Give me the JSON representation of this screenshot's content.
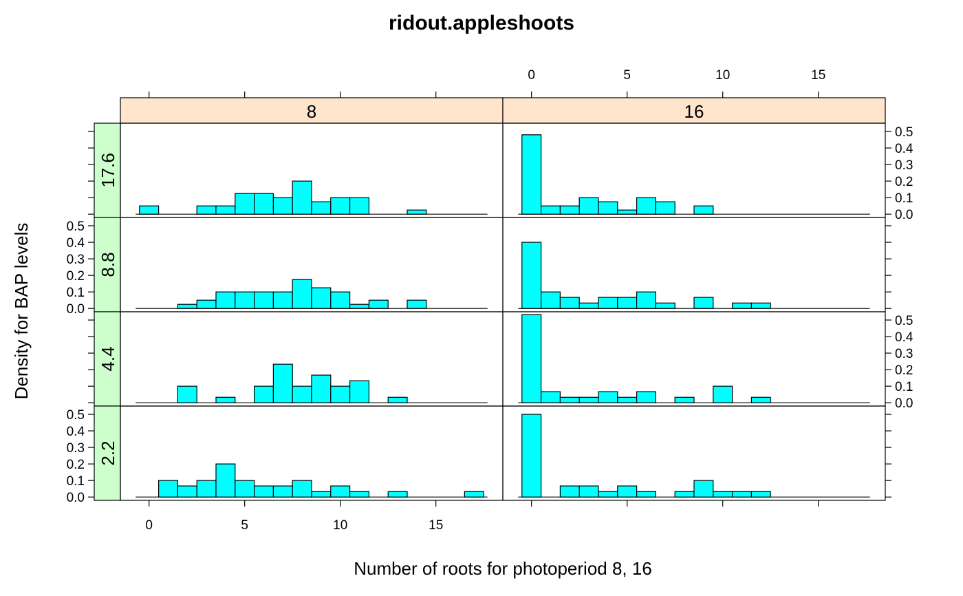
{
  "chart_data": {
    "type": "bar",
    "title": "ridout.appleshoots",
    "xlabel": "Number of roots for photoperiod 8, 16",
    "ylabel": "Density for BAP levels",
    "xlim": [
      -1.5,
      18.5
    ],
    "ylim": [
      -0.02,
      0.55
    ],
    "xticks": [
      0,
      5,
      10,
      15
    ],
    "yticks": [
      0.0,
      0.1,
      0.2,
      0.3,
      0.4,
      0.5
    ],
    "ytick_labels": [
      "0.0",
      "0.1",
      "0.2",
      "0.3",
      "0.4",
      "0.5"
    ],
    "bin_start": -0.5,
    "bin_width": 1,
    "columns": [
      "8",
      "16"
    ],
    "rows": [
      "17.6",
      "8.8",
      "4.4",
      "2.2"
    ],
    "colors": {
      "bar_fill": "#00FFFF",
      "bar_stroke": "#000000",
      "column_strip": "#FFE5CC",
      "row_strip": "#CCFFCC"
    },
    "panels": [
      {
        "photoperiod": "8",
        "bap": "17.6",
        "density": [
          0.05,
          0,
          0,
          0.05,
          0.05,
          0.125,
          0.125,
          0.1,
          0.2,
          0.075,
          0.1,
          0.1,
          0,
          0,
          0.025,
          0,
          0,
          0
        ]
      },
      {
        "photoperiod": "16",
        "bap": "17.6",
        "density": [
          0.48,
          0.05,
          0.05,
          0.1,
          0.075,
          0.025,
          0.1,
          0.075,
          0,
          0.05,
          0,
          0,
          0,
          0,
          0,
          0,
          0,
          0
        ]
      },
      {
        "photoperiod": "8",
        "bap": "8.8",
        "density": [
          0,
          0,
          0.025,
          0.05,
          0.1,
          0.1,
          0.1,
          0.1,
          0.175,
          0.125,
          0.1,
          0.025,
          0.05,
          0,
          0.05,
          0,
          0,
          0
        ]
      },
      {
        "photoperiod": "16",
        "bap": "8.8",
        "density": [
          0.4,
          0.1,
          0.067,
          0.033,
          0.067,
          0.067,
          0.1,
          0.033,
          0,
          0.067,
          0,
          0.033,
          0.033,
          0,
          0,
          0,
          0,
          0
        ]
      },
      {
        "photoperiod": "8",
        "bap": "4.4",
        "density": [
          0,
          0,
          0.1,
          0,
          0.033,
          0,
          0.1,
          0.233,
          0.1,
          0.167,
          0.1,
          0.133,
          0,
          0.033,
          0,
          0,
          0,
          0
        ]
      },
      {
        "photoperiod": "16",
        "bap": "4.4",
        "density": [
          0.533,
          0.067,
          0.033,
          0.033,
          0.067,
          0.033,
          0.067,
          0,
          0.033,
          0,
          0.1,
          0,
          0.033,
          0,
          0,
          0,
          0,
          0
        ]
      },
      {
        "photoperiod": "8",
        "bap": "2.2",
        "density": [
          0,
          0.1,
          0.067,
          0.1,
          0.2,
          0.1,
          0.067,
          0.067,
          0.1,
          0.033,
          0.067,
          0.033,
          0,
          0.033,
          0,
          0,
          0,
          0.033
        ]
      },
      {
        "photoperiod": "16",
        "bap": "2.2",
        "density": [
          0.5,
          0,
          0.067,
          0.067,
          0.033,
          0.067,
          0.033,
          0,
          0.033,
          0.1,
          0.033,
          0.033,
          0.033,
          0,
          0,
          0,
          0,
          0
        ]
      }
    ]
  }
}
